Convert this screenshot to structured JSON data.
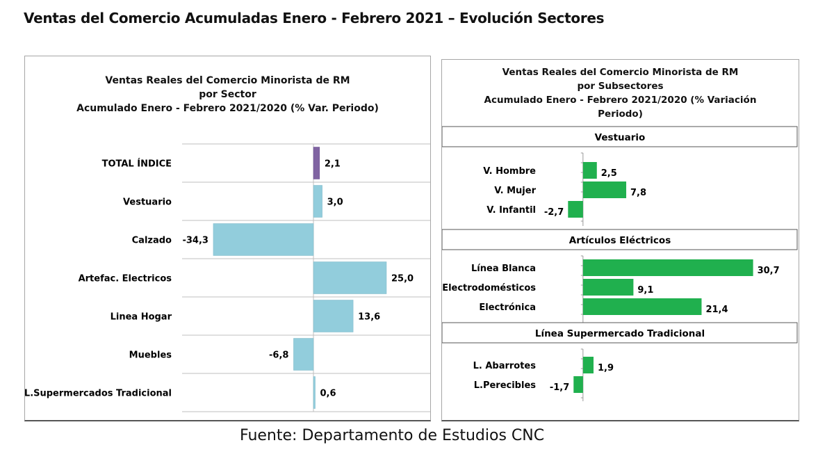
{
  "header": {
    "title": "Ventas del Comercio Acumuladas Enero - Febrero 2021 – Evolución Sectores"
  },
  "source": "Fuente: Departamento de Estudios CNC",
  "colors": {
    "total": "#8064a2",
    "sector": "#92cddc",
    "subsector": "#20b04e",
    "grid": "#bfbfbf"
  },
  "chart_data": [
    {
      "type": "bar",
      "orientation": "horizontal",
      "title_lines": [
        "Ventas Reales del Comercio Minorista de RM",
        "por Sector",
        "Acumulado Enero - Febrero 2021/2020 (% Var. Periodo)"
      ],
      "categories": [
        "TOTAL ÍNDICE",
        "Vestuario",
        "Calzado",
        "Artefac. Electricos",
        "Linea Hogar",
        "Muebles",
        "L.Supermercados Tradicional"
      ],
      "values": [
        2.1,
        3.0,
        -34.3,
        25.0,
        13.6,
        -6.8,
        0.6
      ],
      "value_labels": [
        "2,1",
        "3,0",
        "-34,3",
        "25,0",
        "13,6",
        "-6,8",
        "0,6"
      ],
      "highlight_index": 0,
      "xlim": [
        -45,
        40
      ],
      "grid": true
    },
    {
      "type": "bar",
      "orientation": "horizontal",
      "title_lines": [
        "Ventas Reales del Comercio Minorista de RM",
        "por Subsectores",
        "Acumulado Enero - Febrero 2021/2020 (% Variación",
        "Periodo)"
      ],
      "xlim": [
        -6,
        31
      ],
      "groups": [
        {
          "name": "Vestuario",
          "categories": [
            "V. Hombre",
            "V. Mujer",
            "V. Infantil"
          ],
          "values": [
            2.5,
            7.8,
            -2.7
          ],
          "value_labels": [
            "2,5",
            "7,8",
            "-2,7"
          ]
        },
        {
          "name": "Artículos Eléctricos",
          "categories": [
            "Línea Blanca",
            "Electrodomésticos",
            "Electrónica"
          ],
          "values": [
            30.7,
            9.1,
            21.4
          ],
          "value_labels": [
            "30,7",
            "9,1",
            "21,4"
          ]
        },
        {
          "name": "Línea  Supermercado Tradicional",
          "categories": [
            "L. Abarrotes",
            "L.Perecibles"
          ],
          "values": [
            1.9,
            -1.7
          ],
          "value_labels": [
            "1,9",
            "-1,7"
          ]
        }
      ]
    }
  ]
}
